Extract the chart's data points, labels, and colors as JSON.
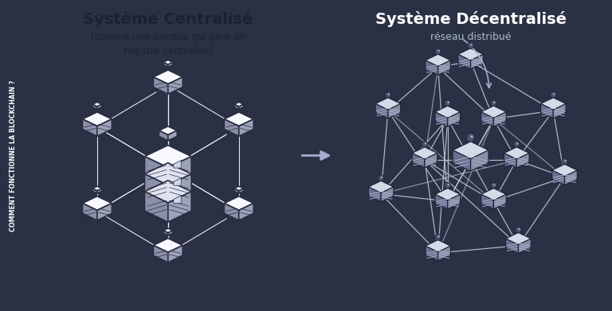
{
  "left_bg": "#e8eaf0",
  "right_bg": "#2b3145",
  "sidebar_bg": "#1c2035",
  "sidebar_text": "COMMENT FONCTIONNE LA BLOCKCHAIN ?",
  "sidebar_text_color": "#ffffff",
  "left_title": "Système Centralisé",
  "left_subtitle": "(comme une banque qui gère un\nregistre centralisé)",
  "right_title": "Système Décentralisé",
  "right_subtitle": "réseau distribué",
  "title_color_left": "#1c2035",
  "title_color_right": "#ffffff",
  "subtitle_color_left": "#1c2035",
  "subtitle_color_right": "#aabbcc",
  "node_top_left": "#f0f2f8",
  "node_left_face": "#8a90a8",
  "node_right_face": "#9ba3b8",
  "node_edge_left": "#2a2d40",
  "node_top_right": "#d8dde8",
  "node_left_face_right": "#7a8099",
  "node_right_face_right": "#9298b0",
  "node_edge_right": "#1c2035",
  "line_color_left": "#2a2d40",
  "line_color_right": "#c8ccd8",
  "dot_color_right": "#ffffff",
  "arrow_color": "#aaaaaa",
  "center_top_left": "#f8f8ff",
  "center_top_right": "#e8ecf4"
}
